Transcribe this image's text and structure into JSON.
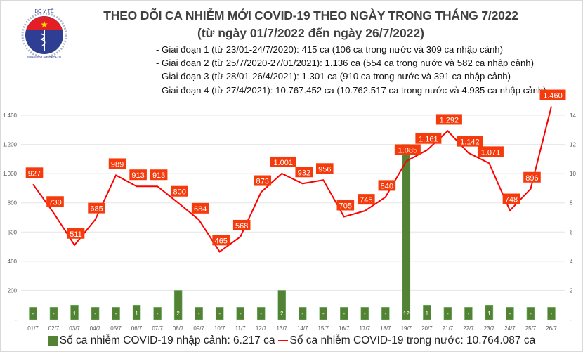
{
  "header": {
    "title": "THEO DÕI CA NHIỄM MỚI COVID-19 THEO NGÀY TRONG THÁNG 7/2022",
    "subtitle": "(từ ngày 01/7/2022 đến ngày 26/7/2022)",
    "notes": [
      "- Giai đoạn 1 (từ 23/01-24/7/2020): 415 ca (106 ca trong nước và 309 ca nhập cảnh)",
      "- Giai đoạn 2 (từ 25/7/2020-27/01/2021): 1.136 ca (554 ca trong nước và 582 ca nhập cảnh)",
      "- Giai đoạn 3 (từ 28/01-26/4/2021): 1.301 ca (910 ca trong nước và 391 ca nhập cảnh)",
      "- Giai đoạn 4 (từ 27/4/2021): 10.767.452 ca (10.762.517 ca trong nước và 4.935 ca nhập cảnh)"
    ]
  },
  "logo": {
    "top_text": "BỘ Y TẾ",
    "bottom_text": "MINISTRY OF HEALTH"
  },
  "chart_data": {
    "type": "bar+line",
    "categories": [
      "01/7",
      "02/7",
      "03/7",
      "04/7",
      "05/7",
      "06/7",
      "07/7",
      "08/7",
      "09/7",
      "10/7",
      "11/7",
      "12/7",
      "13/7",
      "14/7",
      "15/7",
      "16/7",
      "17/7",
      "18/7",
      "19/7",
      "20/7",
      "21/7",
      "22/7",
      "23/7",
      "24/7",
      "25/7",
      "26/7"
    ],
    "series": [
      {
        "name": "Số ca nhiễm COVID-19 nhập cảnh: 6.217 ca",
        "type": "bar",
        "axis": "right",
        "color": "#548235",
        "values": [
          0,
          0,
          1,
          0,
          0,
          1,
          0,
          2,
          0,
          0,
          0,
          0,
          2,
          0,
          0,
          0,
          0,
          0,
          12,
          1,
          0,
          0,
          1,
          0,
          0,
          0
        ],
        "labels": [
          "-",
          "-",
          "1",
          "-",
          "-",
          "1",
          "-",
          "2",
          "-",
          "-",
          "-",
          "-",
          "2",
          "-",
          "-",
          "-",
          "-",
          "-",
          "12",
          "1",
          "-",
          "-",
          "1",
          "-",
          "-",
          "-"
        ]
      },
      {
        "name": "Số ca nhiễm COVID-19 trong nước: 10.764.087 ca",
        "type": "line",
        "axis": "left",
        "color": "#ff0000",
        "values": [
          927,
          730,
          511,
          685,
          989,
          913,
          913,
          800,
          684,
          465,
          568,
          873,
          1001,
          932,
          956,
          705,
          745,
          840,
          1085,
          1161,
          1292,
          1142,
          1071,
          748,
          896,
          1460
        ],
        "labels": [
          "927",
          "730",
          "511",
          "685",
          "989",
          "913",
          "913",
          "800",
          "684",
          "465",
          "568",
          "873",
          "1.001",
          "932",
          "956",
          "705",
          "745",
          "840",
          "1.085",
          "1.161",
          "1.292",
          "1.142",
          "1.071",
          "748",
          "896",
          "1.460"
        ]
      }
    ],
    "left_axis": {
      "range": [
        0,
        1400
      ],
      "ticks": [
        "-",
        "200",
        "400",
        "600",
        "800",
        "1.000",
        "1.200",
        "1.400"
      ]
    },
    "right_axis": {
      "range": [
        0,
        14
      ],
      "ticks": [
        "-",
        "2",
        "4",
        "6",
        "8",
        "10",
        "12",
        "14"
      ]
    },
    "grid": true,
    "legend": "bottom",
    "label_color": "#f53b0c"
  }
}
